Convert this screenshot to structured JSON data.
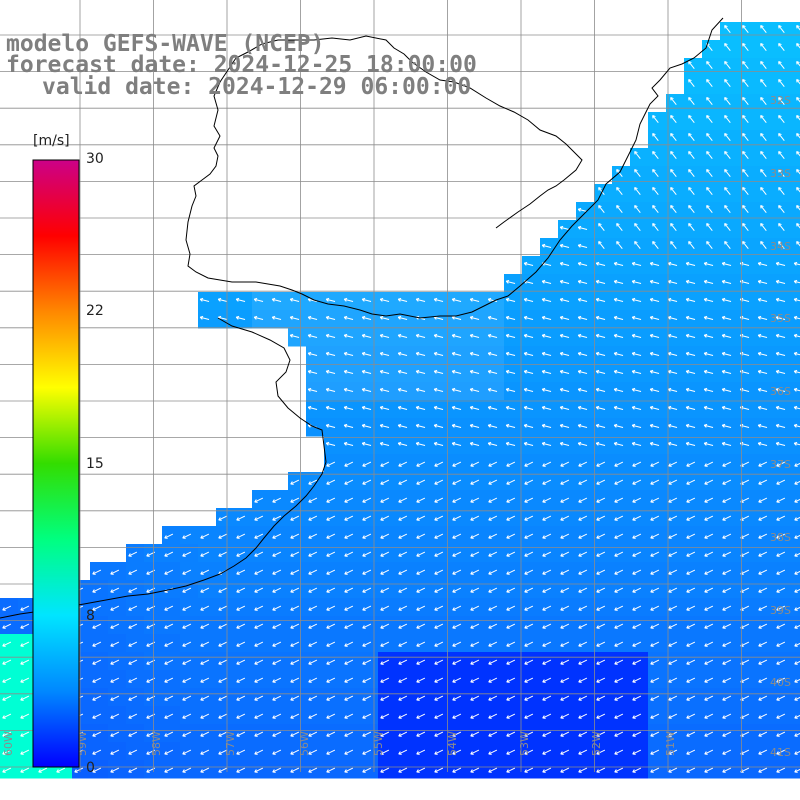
{
  "header": {
    "model": "modelo GEFS-WAVE (NCEP)",
    "forecast": "forecast date: 2024-12-25 18:00:00",
    "valid": "valid date: 2024-12-29 06:00:00"
  },
  "colorbar": {
    "unit": "[m/s]",
    "ticks": [
      "30",
      "22",
      "15",
      "8",
      "0"
    ],
    "stops": [
      "#0000ff",
      "#0088ff",
      "#00e5ff",
      "#00ff80",
      "#33dd00",
      "#ffff00",
      "#ff8800",
      "#ff0000",
      "#cc0088"
    ]
  },
  "graticule": {
    "lon_labels": [
      "60W",
      "59W",
      "58W",
      "57W",
      "56W",
      "55W",
      "54W",
      "53W",
      "52W",
      "51W"
    ],
    "lat_labels": [
      "32S",
      "33S",
      "34S",
      "35S",
      "36S",
      "37S",
      "38S",
      "39S",
      "40S",
      "41S"
    ]
  },
  "colors": {
    "land": "#ffffff",
    "coast": "#000000",
    "grid": "#8c8c8c",
    "arrow": "#ffffff"
  }
}
